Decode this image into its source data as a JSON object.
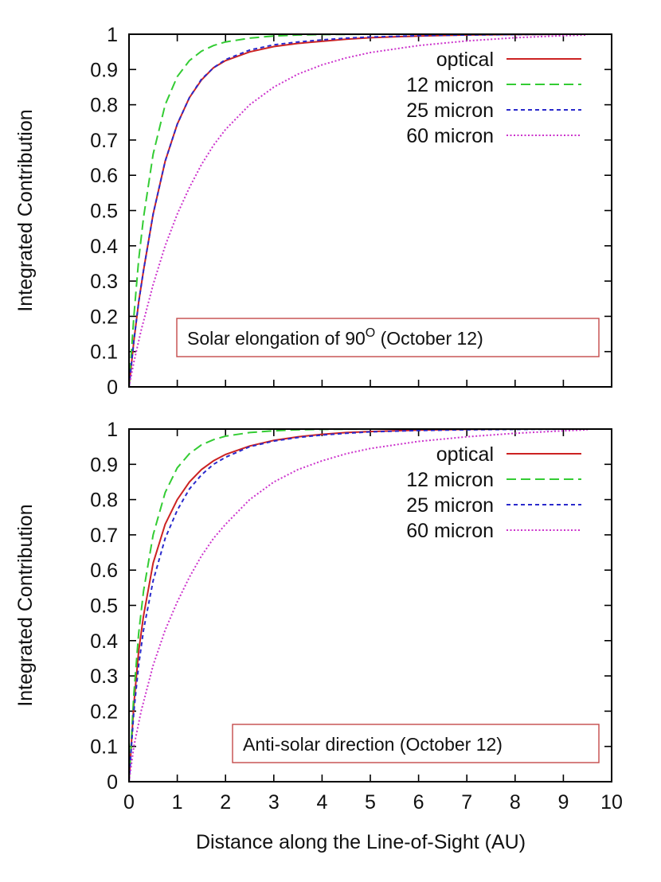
{
  "chart_data": [
    {
      "type": "line",
      "ylabel": "Integrated Contribution",
      "xlabel": "",
      "xlim": [
        0,
        10
      ],
      "ylim": [
        0,
        1
      ],
      "yticks": [
        "0",
        "0.1",
        "0.2",
        "0.3",
        "0.4",
        "0.5",
        "0.6",
        "0.7",
        "0.8",
        "0.9",
        "1"
      ],
      "xticks": [],
      "annotation": {
        "text": "Solar elongation of 90",
        "sup": "O",
        "suffix": " (October 12)"
      },
      "legend_position": "top-right",
      "series": [
        {
          "name": "optical",
          "color": "#cc2222",
          "dash": "solid",
          "x": [
            0,
            0.1,
            0.2,
            0.3,
            0.5,
            0.75,
            1,
            1.25,
            1.5,
            1.75,
            2,
            2.5,
            3,
            3.5,
            4,
            4.5,
            5,
            6,
            7,
            8,
            9,
            9.5
          ],
          "y": [
            0,
            0.13,
            0.24,
            0.33,
            0.49,
            0.64,
            0.745,
            0.82,
            0.87,
            0.905,
            0.925,
            0.95,
            0.965,
            0.974,
            0.98,
            0.986,
            0.99,
            0.995,
            0.998,
            0.999,
            1.0,
            1.0
          ]
        },
        {
          "name": "12 micron",
          "color": "#33cc33",
          "dash": "12,6",
          "x": [
            0,
            0.1,
            0.2,
            0.3,
            0.5,
            0.75,
            1,
            1.25,
            1.5,
            1.75,
            2,
            2.5,
            3,
            3.5,
            4,
            5,
            6,
            7,
            8,
            9.5
          ],
          "y": [
            0,
            0.2,
            0.36,
            0.48,
            0.66,
            0.8,
            0.88,
            0.925,
            0.952,
            0.968,
            0.978,
            0.989,
            0.995,
            0.998,
            0.999,
            1.0,
            1.0,
            1.0,
            1.0,
            1.0
          ]
        },
        {
          "name": "25 micron",
          "color": "#2a2acc",
          "dash": "5,4",
          "x": [
            0,
            0.1,
            0.2,
            0.3,
            0.5,
            0.75,
            1,
            1.25,
            1.5,
            1.75,
            2,
            2.5,
            3,
            3.5,
            4,
            4.5,
            5,
            6,
            7,
            8,
            9,
            9.5
          ],
          "y": [
            0,
            0.13,
            0.24,
            0.33,
            0.49,
            0.64,
            0.745,
            0.82,
            0.872,
            0.905,
            0.928,
            0.955,
            0.97,
            0.978,
            0.984,
            0.989,
            0.992,
            0.996,
            0.998,
            0.999,
            1.0,
            1.0
          ]
        },
        {
          "name": "60 micron",
          "color": "#cc33cc",
          "dash": "2,2.5",
          "x": [
            0,
            0.1,
            0.25,
            0.5,
            0.75,
            1,
            1.25,
            1.5,
            1.75,
            2,
            2.5,
            3,
            3.5,
            4,
            4.5,
            5,
            6,
            7,
            8,
            9,
            9.5
          ],
          "y": [
            0,
            0.07,
            0.16,
            0.29,
            0.4,
            0.49,
            0.565,
            0.63,
            0.685,
            0.73,
            0.8,
            0.85,
            0.887,
            0.913,
            0.933,
            0.948,
            0.968,
            0.981,
            0.99,
            0.996,
            0.998
          ]
        }
      ]
    },
    {
      "type": "line",
      "ylabel": "Integrated Contribution",
      "xlabel": "Distance along the Line-of-Sight (AU)",
      "xlim": [
        0,
        10
      ],
      "ylim": [
        0,
        1
      ],
      "yticks": [
        "0",
        "0.1",
        "0.2",
        "0.3",
        "0.4",
        "0.5",
        "0.6",
        "0.7",
        "0.8",
        "0.9",
        "1"
      ],
      "xticks": [
        "0",
        "1",
        "2",
        "3",
        "4",
        "5",
        "6",
        "7",
        "8",
        "9",
        "10"
      ],
      "annotation": {
        "text": "Anti-solar direction (October 12)",
        "sup": "",
        "suffix": ""
      },
      "legend_position": "top-right",
      "series": [
        {
          "name": "optical",
          "color": "#cc2222",
          "dash": "solid",
          "x": [
            0,
            0.1,
            0.2,
            0.3,
            0.5,
            0.75,
            1,
            1.25,
            1.5,
            1.75,
            2,
            2.5,
            3,
            3.5,
            4,
            4.5,
            5,
            6,
            7,
            8,
            9.5
          ],
          "y": [
            0,
            0.22,
            0.37,
            0.47,
            0.62,
            0.73,
            0.8,
            0.85,
            0.885,
            0.91,
            0.928,
            0.952,
            0.968,
            0.978,
            0.985,
            0.99,
            0.993,
            0.997,
            0.999,
            1.0,
            1.0
          ]
        },
        {
          "name": "12 micron",
          "color": "#33cc33",
          "dash": "12,6",
          "x": [
            0,
            0.1,
            0.2,
            0.3,
            0.5,
            0.75,
            1,
            1.25,
            1.5,
            1.75,
            2,
            2.5,
            3,
            3.5,
            4,
            5,
            6,
            7,
            8,
            9.5
          ],
          "y": [
            0,
            0.25,
            0.42,
            0.54,
            0.7,
            0.82,
            0.89,
            0.93,
            0.955,
            0.97,
            0.98,
            0.99,
            0.995,
            0.998,
            0.999,
            1.0,
            1.0,
            1.0,
            1.0,
            1.0
          ]
        },
        {
          "name": "25 micron",
          "color": "#2a2acc",
          "dash": "5,4",
          "x": [
            0,
            0.1,
            0.2,
            0.3,
            0.5,
            0.75,
            1,
            1.25,
            1.5,
            1.75,
            2,
            2.5,
            3,
            3.5,
            4,
            4.5,
            5,
            6,
            7,
            8,
            9.5
          ],
          "y": [
            0,
            0.2,
            0.33,
            0.43,
            0.57,
            0.69,
            0.77,
            0.83,
            0.87,
            0.9,
            0.92,
            0.95,
            0.966,
            0.976,
            0.983,
            0.988,
            0.992,
            0.996,
            0.998,
            0.999,
            1.0
          ]
        },
        {
          "name": "60 micron",
          "color": "#cc33cc",
          "dash": "2,2.5",
          "x": [
            0,
            0.1,
            0.25,
            0.5,
            0.75,
            1,
            1.25,
            1.5,
            1.75,
            2,
            2.5,
            3,
            3.5,
            4,
            4.5,
            5,
            6,
            7,
            8,
            9,
            9.5
          ],
          "y": [
            0,
            0.1,
            0.2,
            0.33,
            0.43,
            0.51,
            0.58,
            0.64,
            0.69,
            0.73,
            0.8,
            0.85,
            0.885,
            0.91,
            0.93,
            0.945,
            0.965,
            0.978,
            0.988,
            0.995,
            0.998
          ]
        }
      ]
    }
  ]
}
